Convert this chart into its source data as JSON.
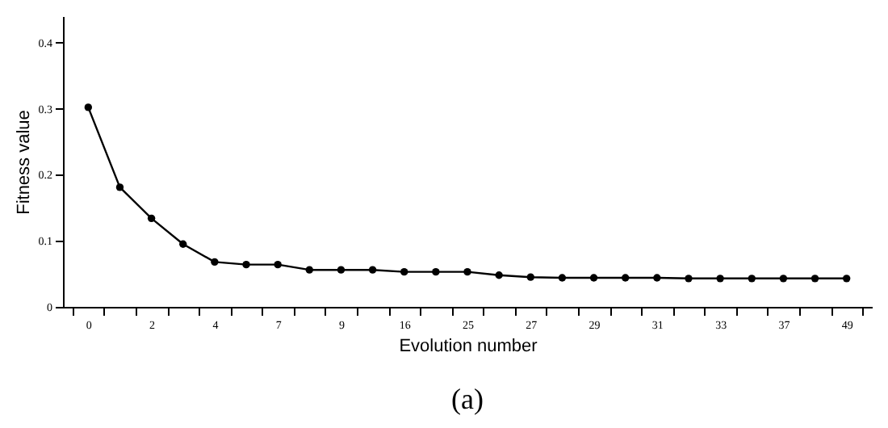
{
  "chart_data": {
    "type": "line",
    "xlabel": "Evolution number",
    "ylabel": "Fitness value",
    "categories": [
      "0",
      null,
      "2",
      null,
      "4",
      null,
      "7",
      null,
      "9",
      null,
      "16",
      null,
      "25",
      null,
      "27",
      null,
      "29",
      null,
      "31",
      null,
      "33",
      null,
      "37",
      null,
      "49"
    ],
    "series": [
      {
        "color": "#000000",
        "values": [
          0.302,
          0.181,
          0.134,
          0.095,
          0.068,
          0.064,
          0.064,
          0.056,
          0.056,
          0.056,
          0.053,
          0.053,
          0.053,
          0.048,
          0.045,
          0.044,
          0.044,
          0.044,
          0.044,
          0.043,
          0.043,
          0.043,
          0.043,
          0.043,
          0.043
        ]
      }
    ],
    "ylim": [
      0,
      0.44
    ],
    "yticks": [
      0,
      0.1,
      0.2,
      0.3,
      0.4
    ],
    "grid": false,
    "marker": "circle",
    "line_style": "solid",
    "annotations": [
      "(a)"
    ]
  }
}
